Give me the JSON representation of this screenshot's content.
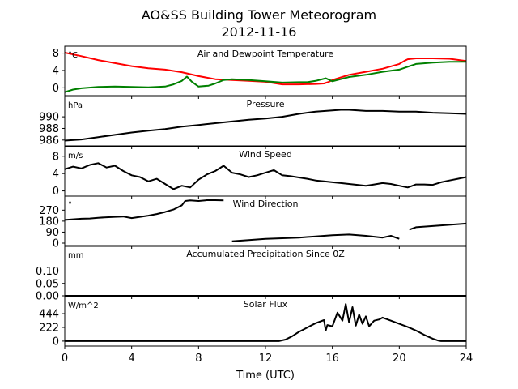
{
  "title": "AO&SS Building Tower Meteorogram",
  "subtitle": "2012-11-16",
  "chart_data": {
    "type": "line",
    "xlabel": "Time (UTC)",
    "xlim": [
      0,
      24
    ],
    "xticks": [
      "0",
      "4",
      "8",
      "12",
      "16",
      "20",
      "24"
    ],
    "panels": [
      {
        "name": "temp",
        "title": "Air and Dewpoint Temperature",
        "unit": "°C",
        "ylim": [
          -1.8,
          9.6
        ],
        "yticks": [
          {
            "v": 8,
            "label": "8"
          },
          {
            "v": 4,
            "label": "4"
          },
          {
            "v": 0,
            "label": "0"
          }
        ],
        "series": [
          {
            "color": "#ff0000",
            "x": [
              0,
              1,
              2,
              3,
              4,
              5,
              6,
              7,
              8,
              9,
              10,
              11,
              12,
              13,
              14,
              15,
              15.5,
              15.8,
              16,
              17,
              18,
              19,
              20,
              20.3,
              20.5,
              21,
              22,
              23,
              24
            ],
            "y": [
              8.1,
              7.3,
              6.4,
              5.7,
              5,
              4.5,
              4.2,
              3.6,
              2.7,
              2,
              1.8,
              1.6,
              1.4,
              0.8,
              0.8,
              0.9,
              1,
              1.4,
              1.8,
              3,
              3.7,
              4.4,
              5.5,
              6.2,
              6.6,
              6.8,
              6.8,
              6.7,
              6.2
            ]
          },
          {
            "color": "#008000",
            "x": [
              0,
              0.5,
              1,
              2,
              3,
              4,
              5,
              6,
              6.5,
              7,
              7.3,
              7.6,
              8,
              8.6,
              9,
              9.5,
              10,
              11,
              12,
              13,
              14,
              14.5,
              15,
              15.6,
              16,
              17,
              18,
              19,
              20,
              21,
              22,
              23,
              24
            ],
            "y": [
              -1,
              -0.4,
              -0.1,
              0.2,
              0.3,
              0.2,
              0.1,
              0.3,
              0.8,
              1.6,
              2.6,
              1.4,
              0.3,
              0.5,
              1,
              1.8,
              2,
              1.8,
              1.5,
              1.2,
              1.3,
              1.3,
              1.6,
              2.2,
              1.5,
              2.5,
              3,
              3.7,
              4.2,
              5.5,
              5.8,
              6,
              6
            ]
          }
        ]
      },
      {
        "name": "pressure",
        "title": "Pressure",
        "unit": "hPa",
        "ylim": [
          985,
          993.5
        ],
        "yticks": [
          {
            "v": 990,
            "label": "990"
          },
          {
            "v": 988,
            "label": "988"
          },
          {
            "v": 986,
            "label": "986"
          }
        ],
        "series": [
          {
            "color": "#000000",
            "x": [
              0,
              1,
              2,
              3,
              4,
              5,
              6,
              7,
              8,
              9,
              10,
              11,
              12,
              13,
              14,
              15,
              16,
              16.5,
              17,
              18,
              19,
              20,
              21,
              22,
              23,
              24
            ],
            "y": [
              985.9,
              986.1,
              986.5,
              986.9,
              987.3,
              987.6,
              987.9,
              988.3,
              988.6,
              988.9,
              989.2,
              989.5,
              989.7,
              990,
              990.5,
              990.9,
              991.1,
              991.2,
              991.2,
              991,
              991,
              990.9,
              990.9,
              990.7,
              990.6,
              990.5
            ]
          }
        ]
      },
      {
        "name": "wind_speed",
        "title": "Wind Speed",
        "unit": "m/s",
        "ylim": [
          -1.2,
          10.2
        ],
        "yticks": [
          {
            "v": 8,
            "label": "8"
          },
          {
            "v": 4,
            "label": "4"
          },
          {
            "v": 0,
            "label": "0"
          }
        ],
        "series": [
          {
            "color": "#000000",
            "x": [
              0,
              0.5,
              1,
              1.5,
              2,
              2.5,
              3,
              3.5,
              4,
              4.5,
              5,
              5.5,
              6,
              6.5,
              7,
              7.5,
              8,
              8.5,
              9,
              9.5,
              10,
              10.5,
              11,
              11.5,
              12,
              12.5,
              13,
              13.5,
              14,
              14.5,
              15,
              15.5,
              16,
              16.5,
              17,
              17.5,
              18,
              18.5,
              19,
              19.5,
              20,
              20.5,
              21,
              21.5,
              22,
              22.5,
              23,
              23.5,
              24
            ],
            "y": [
              5,
              5.6,
              5.2,
              6,
              6.4,
              5.4,
              5.8,
              4.6,
              3.6,
              3.2,
              2.2,
              2.8,
              1.6,
              0.4,
              1.2,
              0.8,
              2.6,
              3.8,
              4.6,
              5.8,
              4.2,
              3.8,
              3.2,
              3.6,
              4.2,
              4.8,
              3.6,
              3.4,
              3.1,
              2.8,
              2.4,
              2.2,
              2,
              1.8,
              1.6,
              1.4,
              1.2,
              1.5,
              1.8,
              1.6,
              1.2,
              0.8,
              1.5,
              1.5,
              1.4,
              2,
              2.4,
              2.8,
              3.2
            ]
          }
        ]
      },
      {
        "name": "wind_direction",
        "title": "Wind Direction",
        "unit": "°",
        "ylim": [
          -20,
          385
        ],
        "yticks": [
          {
            "v": 270,
            "label": "270"
          },
          {
            "v": 180,
            "label": "180"
          },
          {
            "v": 90,
            "label": "90"
          },
          {
            "v": 0,
            "label": "0"
          }
        ],
        "series": [
          {
            "color": "#000000",
            "x": [
              0,
              0.5,
              1,
              1.5,
              2,
              2.5,
              3,
              3.5,
              4,
              4.5,
              5,
              5.5,
              6,
              6.5,
              7,
              7.2,
              7.5,
              8,
              8.5,
              9,
              9.5
            ],
            "y": [
              190,
              195,
              200,
              202,
              208,
              212,
              215,
              218,
              205,
              215,
              225,
              238,
              255,
              275,
              310,
              345,
              350,
              345,
              352,
              352,
              350
            ]
          },
          {
            "color": "#000000",
            "x": [
              10,
              11,
              12,
              13,
              14,
              15,
              16,
              17,
              18,
              19,
              19.5,
              20
            ],
            "y": [
              15,
              25,
              35,
              40,
              45,
              55,
              65,
              70,
              60,
              45,
              60,
              35
            ]
          },
          {
            "color": "#000000",
            "x": [
              20.6,
              21,
              22,
              23,
              24
            ],
            "y": [
              110,
              130,
              140,
              150,
              160
            ]
          }
        ]
      },
      {
        "name": "precip",
        "title": "Accumulated Precipitation Since 0Z",
        "unit": "mm",
        "ylim": [
          0,
          0.2
        ],
        "yticks": [
          {
            "v": 0.1,
            "label": "0.10"
          },
          {
            "v": 0.05,
            "label": "0.05"
          },
          {
            "v": 0,
            "label": "0.00"
          }
        ],
        "series": [
          {
            "color": "#000000",
            "x": [
              0,
              24
            ],
            "y": [
              0,
              0
            ]
          }
        ]
      },
      {
        "name": "solar",
        "title": "Solar Flux",
        "unit": "W/m^2",
        "ylim": [
          -80,
          720
        ],
        "yticks": [
          {
            "v": 444,
            "label": "444"
          },
          {
            "v": 222,
            "label": "222"
          },
          {
            "v": 0,
            "label": "0"
          }
        ],
        "series": [
          {
            "color": "#000000",
            "x": [
              0,
              12.8,
              13.2,
              13.6,
              14,
              14.5,
              15,
              15.5,
              15.6,
              15.7,
              16,
              16.3,
              16.6,
              16.8,
              17,
              17.2,
              17.4,
              17.6,
              17.8,
              18,
              18.2,
              18.5,
              18.8,
              19,
              19.5,
              20,
              20.5,
              21,
              21.5,
              22,
              22.3,
              22.5,
              23,
              24
            ],
            "y": [
              0,
              0,
              25,
              80,
              150,
              220,
              290,
              340,
              170,
              260,
              240,
              460,
              330,
              600,
              300,
              550,
              250,
              430,
              280,
              400,
              240,
              330,
              350,
              380,
              330,
              280,
              230,
              170,
              100,
              40,
              10,
              0,
              0,
              0
            ]
          }
        ]
      }
    ]
  }
}
